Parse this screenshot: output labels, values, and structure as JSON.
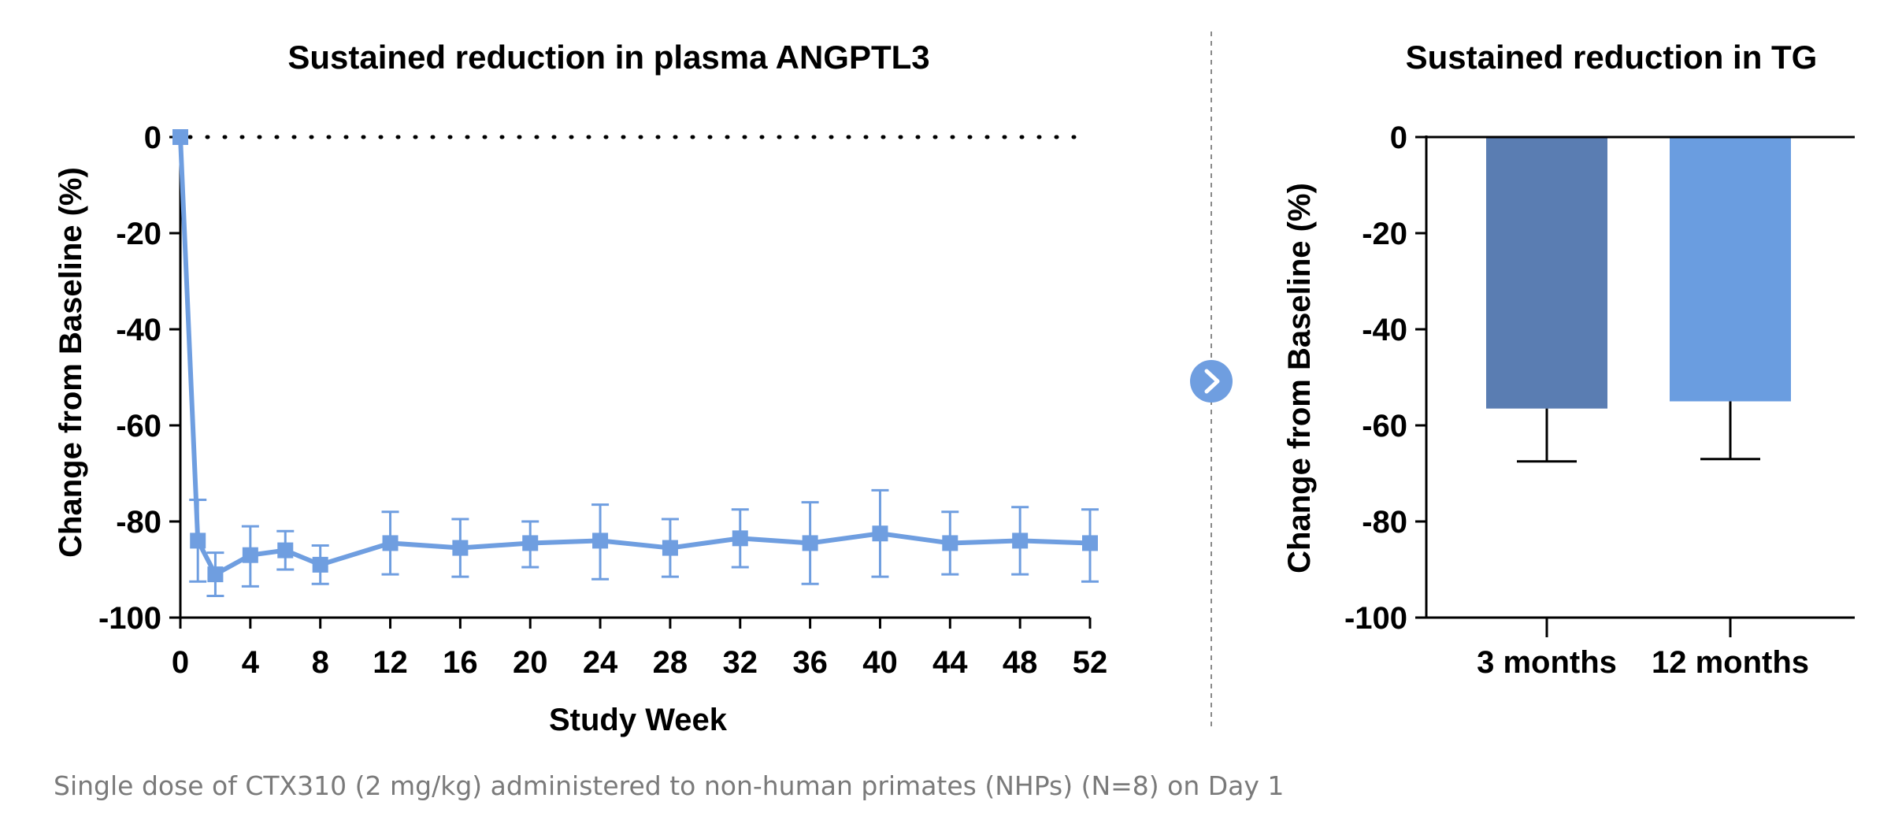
{
  "caption": "Single dose of CTX310 (2 mg/kg) administered to non-human primates (NHPs) (N=8) on Day 1",
  "divider_icon": "chevron-right-icon",
  "colors": {
    "line_series": "#6f9ee0",
    "bar_3_months": "#5a7db2",
    "bar_12_months": "#6a9de0",
    "axis": "#000000",
    "divider": "#8a8a8a"
  },
  "chart_data": [
    {
      "type": "line",
      "title": "Sustained reduction in plasma ANGPTL3",
      "xlabel": "Study Week",
      "ylabel": "Change from Baseline (%)",
      "xlim": [
        0,
        52
      ],
      "ylim": [
        -100,
        0
      ],
      "xticks": [
        0,
        4,
        8,
        12,
        16,
        20,
        24,
        28,
        32,
        36,
        40,
        44,
        48,
        52
      ],
      "yticks": [
        0,
        -20,
        -40,
        -60,
        -80,
        -100
      ],
      "grid": false,
      "baseline_reference": 0,
      "series": [
        {
          "x": [
            0,
            1,
            2,
            4,
            6,
            8,
            12,
            16,
            20,
            24,
            28,
            32,
            36,
            40,
            44,
            48,
            52
          ],
          "y": [
            0,
            -84,
            -91,
            -87,
            -86,
            -89,
            -84.5,
            -85.5,
            -84.5,
            -84,
            -85.5,
            -83.5,
            -84.5,
            -82.5,
            -84.5,
            -84,
            -84.5
          ],
          "error_low": [
            0,
            -92.5,
            -95.5,
            -93.5,
            -90,
            -93,
            -91,
            -91.5,
            -89.5,
            -92,
            -91.5,
            -89.5,
            -93,
            -91.5,
            -91,
            -91,
            -92.5
          ],
          "error_high": [
            0,
            -75.5,
            -86.5,
            -81,
            -82,
            -85,
            -78,
            -79.5,
            -80,
            -76.5,
            -79.5,
            -77.5,
            -76,
            -73.5,
            -78,
            -77,
            -77.5
          ]
        }
      ]
    },
    {
      "type": "bar",
      "title": "Sustained reduction in TG",
      "xlabel": "",
      "ylabel": "Change from Baseline (%)",
      "ylim": [
        -100,
        0
      ],
      "yticks": [
        0,
        -20,
        -40,
        -60,
        -80,
        -100
      ],
      "grid": false,
      "categories": [
        "3 months",
        "12 months"
      ],
      "values": [
        -56.5,
        -55
      ],
      "error_low": [
        -67.5,
        -67
      ]
    }
  ]
}
